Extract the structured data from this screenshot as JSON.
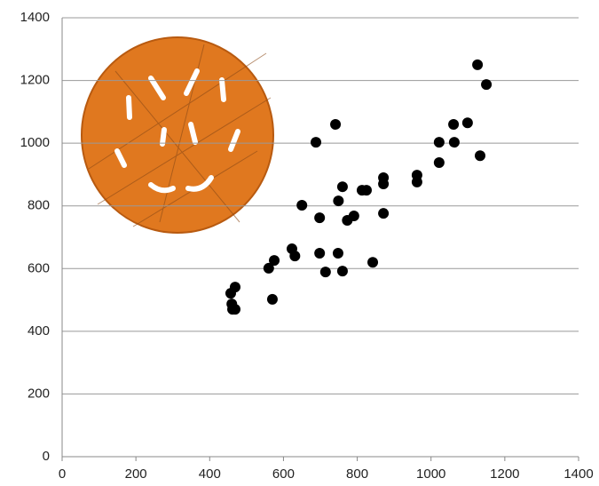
{
  "chart_data": {
    "type": "scatter",
    "x": [
      1126,
      1150,
      741,
      688,
      1022,
      1061,
      1099,
      1063,
      1133,
      1022,
      962,
      962,
      871,
      871,
      760,
      813,
      825,
      749,
      650,
      698,
      791,
      773,
      871,
      623,
      631,
      698,
      748,
      575,
      560,
      842,
      714,
      760,
      570,
      469,
      457,
      460,
      462,
      469
    ],
    "values": [
      1250,
      1187,
      1060,
      1003,
      1003,
      1060,
      1065,
      1003,
      960,
      938,
      898,
      876,
      890,
      870,
      861,
      850,
      850,
      816,
      802,
      762,
      768,
      754,
      776,
      663,
      640,
      649,
      649,
      626,
      601,
      620,
      589,
      592,
      502,
      541,
      521,
      487,
      470,
      470
    ],
    "color": "#000000",
    "xlim": [
      0,
      1400
    ],
    "xticks": [
      0,
      200,
      400,
      600,
      800,
      1000,
      1200,
      1400
    ],
    "ylim": [
      0,
      1400
    ],
    "yticks": [
      0,
      200,
      400,
      600,
      800,
      1000,
      1200,
      1400
    ],
    "grid": true
  }
}
